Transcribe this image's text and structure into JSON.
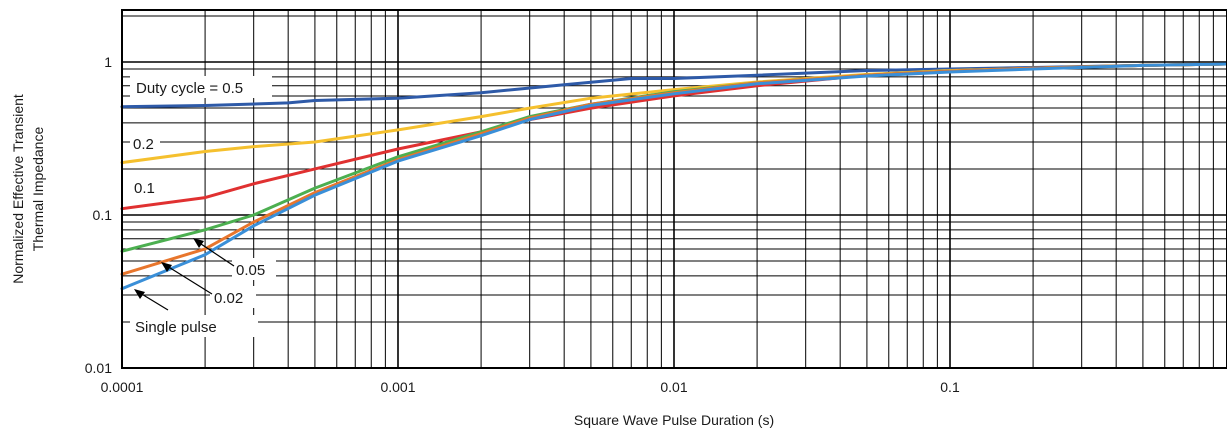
{
  "chart_data": {
    "type": "line",
    "x_scale": "log",
    "y_scale": "log",
    "xlim": [
      0.0001,
      1
    ],
    "ylim": [
      0.01,
      2
    ],
    "xlabel": "Square Wave Pulse Duration (s)",
    "ylabel": [
      "Normalized Effective Transient",
      "Thermal Impedance"
    ],
    "x_ticks": [
      {
        "value": 0.0001,
        "label": "0.0001"
      },
      {
        "value": 0.001,
        "label": "0.001"
      },
      {
        "value": 0.01,
        "label": "0.01"
      },
      {
        "value": 0.1,
        "label": "0.1"
      }
    ],
    "y_ticks": [
      {
        "value": 1,
        "label": "1"
      },
      {
        "value": 0.1,
        "label": "0.1"
      },
      {
        "value": 0.01,
        "label": "0.01"
      }
    ],
    "grid": true,
    "series": [
      {
        "name": "Duty cycle = 0.5",
        "color": "#2e5aa8",
        "points": [
          [
            0.0001,
            0.51
          ],
          [
            0.0002,
            0.52
          ],
          [
            0.0004,
            0.54
          ],
          [
            0.0005,
            0.56
          ],
          [
            0.001,
            0.58
          ],
          [
            0.002,
            0.63
          ],
          [
            0.004,
            0.71
          ],
          [
            0.007,
            0.78
          ],
          [
            0.01,
            0.78
          ],
          [
            0.02,
            0.82
          ],
          [
            0.05,
            0.88
          ],
          [
            0.1,
            0.9
          ],
          [
            0.2,
            0.92
          ],
          [
            0.5,
            0.95
          ],
          [
            1,
            0.97
          ]
        ]
      },
      {
        "name": "0.2",
        "color": "#f5c02e",
        "points": [
          [
            0.0001,
            0.22
          ],
          [
            0.0002,
            0.26
          ],
          [
            0.0003,
            0.28
          ],
          [
            0.0005,
            0.3
          ],
          [
            0.001,
            0.36
          ],
          [
            0.002,
            0.44
          ],
          [
            0.003,
            0.5
          ],
          [
            0.005,
            0.58
          ],
          [
            0.01,
            0.66
          ],
          [
            0.02,
            0.74
          ],
          [
            0.05,
            0.83
          ],
          [
            0.1,
            0.88
          ],
          [
            0.2,
            0.91
          ],
          [
            0.5,
            0.95
          ],
          [
            1,
            0.97
          ]
        ]
      },
      {
        "name": "0.1",
        "color": "#e03131",
        "points": [
          [
            0.0001,
            0.11
          ],
          [
            0.0002,
            0.13
          ],
          [
            0.0003,
            0.16
          ],
          [
            0.0005,
            0.2
          ],
          [
            0.001,
            0.27
          ],
          [
            0.002,
            0.35
          ],
          [
            0.003,
            0.42
          ],
          [
            0.005,
            0.5
          ],
          [
            0.01,
            0.6
          ],
          [
            0.02,
            0.7
          ],
          [
            0.05,
            0.82
          ],
          [
            0.1,
            0.87
          ],
          [
            0.2,
            0.91
          ],
          [
            0.5,
            0.95
          ],
          [
            1,
            0.97
          ]
        ]
      },
      {
        "name": "0.05",
        "color": "#4caf50",
        "points": [
          [
            0.0001,
            0.058
          ],
          [
            0.0002,
            0.08
          ],
          [
            0.0003,
            0.1
          ],
          [
            0.0005,
            0.15
          ],
          [
            0.001,
            0.24
          ],
          [
            0.002,
            0.35
          ],
          [
            0.003,
            0.44
          ],
          [
            0.005,
            0.53
          ],
          [
            0.01,
            0.64
          ],
          [
            0.02,
            0.73
          ],
          [
            0.05,
            0.82
          ],
          [
            0.1,
            0.87
          ],
          [
            0.2,
            0.91
          ],
          [
            0.5,
            0.95
          ],
          [
            1,
            0.97
          ]
        ]
      },
      {
        "name": "0.02",
        "color": "#e8762d",
        "points": [
          [
            0.0001,
            0.041
          ],
          [
            0.0002,
            0.06
          ],
          [
            0.0003,
            0.09
          ],
          [
            0.0005,
            0.14
          ],
          [
            0.001,
            0.23
          ],
          [
            0.002,
            0.34
          ],
          [
            0.003,
            0.43
          ],
          [
            0.005,
            0.53
          ],
          [
            0.01,
            0.63
          ],
          [
            0.02,
            0.73
          ],
          [
            0.05,
            0.82
          ],
          [
            0.1,
            0.87
          ],
          [
            0.2,
            0.91
          ],
          [
            0.5,
            0.95
          ],
          [
            1,
            0.97
          ]
        ]
      },
      {
        "name": "Single pulse",
        "color": "#3a8fd8",
        "points": [
          [
            0.0001,
            0.033
          ],
          [
            0.0002,
            0.055
          ],
          [
            0.0003,
            0.085
          ],
          [
            0.0005,
            0.135
          ],
          [
            0.001,
            0.225
          ],
          [
            0.002,
            0.33
          ],
          [
            0.003,
            0.42
          ],
          [
            0.005,
            0.52
          ],
          [
            0.01,
            0.62
          ],
          [
            0.02,
            0.72
          ],
          [
            0.05,
            0.81
          ],
          [
            0.1,
            0.86
          ],
          [
            0.2,
            0.9
          ],
          [
            0.5,
            0.95
          ],
          [
            1,
            0.97
          ]
        ]
      }
    ],
    "annotations": [
      {
        "text": "Duty cycle = 0.5"
      },
      {
        "text": "0.2"
      },
      {
        "text": "0.1"
      },
      {
        "text": "0.05"
      },
      {
        "text": "0.02"
      },
      {
        "text": "Single pulse"
      }
    ]
  }
}
